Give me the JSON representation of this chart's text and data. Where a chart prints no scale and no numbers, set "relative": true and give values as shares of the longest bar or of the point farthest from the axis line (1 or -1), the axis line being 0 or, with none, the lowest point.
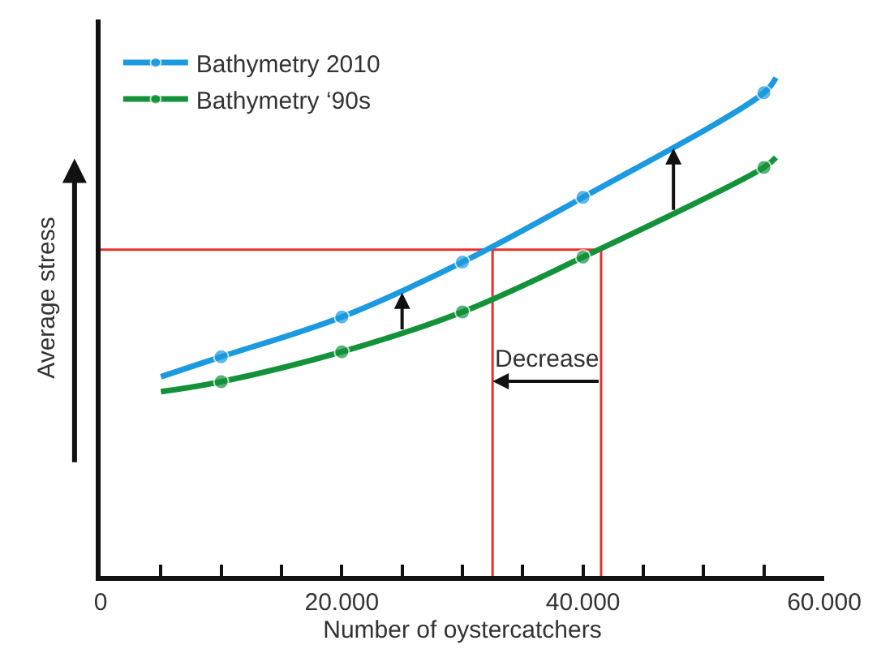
{
  "chart_data": {
    "type": "line",
    "relative": true,
    "xlabel": "Number of oystercatchers",
    "ylabel": "Average stress",
    "x": [
      5000,
      10000,
      20000,
      30000,
      40000,
      55000,
      56000
    ],
    "series": [
      {
        "name": "Bathymetry 2010",
        "color": "#1b9ae0",
        "values": [
          0.4,
          0.44,
          0.52,
          0.63,
          0.76,
          0.97,
          1.0
        ]
      },
      {
        "name": "Bathymetry ‘90s",
        "color": "#13923a",
        "values": [
          0.37,
          0.39,
          0.45,
          0.53,
          0.64,
          0.82,
          0.84
        ]
      }
    ],
    "marker": "circle",
    "line_style": "solid",
    "grid": false,
    "legend": "top left",
    "xlim": [
      0,
      60000
    ],
    "xticks": [
      0,
      {
        "value": 5000,
        "label": null
      },
      {
        "value": 10000,
        "label": null
      },
      {
        "value": 15000,
        "label": null
      },
      {
        "value": 20000,
        "label": "20.000"
      },
      {
        "value": 25000,
        "label": null
      },
      {
        "value": 30000,
        "label": null
      },
      {
        "value": 35000,
        "label": null
      },
      {
        "value": 40000,
        "label": "40.000"
      },
      {
        "value": 45000,
        "label": null
      },
      {
        "value": 50000,
        "label": null
      },
      {
        "value": 55000,
        "label": null
      },
      {
        "value": 60000,
        "label": "60.000"
      }
    ],
    "ref_lines": [
      {
        "axis": "y",
        "value": 0.655,
        "color": "#e8312f"
      },
      {
        "axis": "x",
        "value": 32500,
        "color": "#e8312f"
      },
      {
        "axis": "x",
        "value": 41500,
        "color": "#e8312f"
      }
    ],
    "annotations": [
      "Decrease"
    ]
  }
}
